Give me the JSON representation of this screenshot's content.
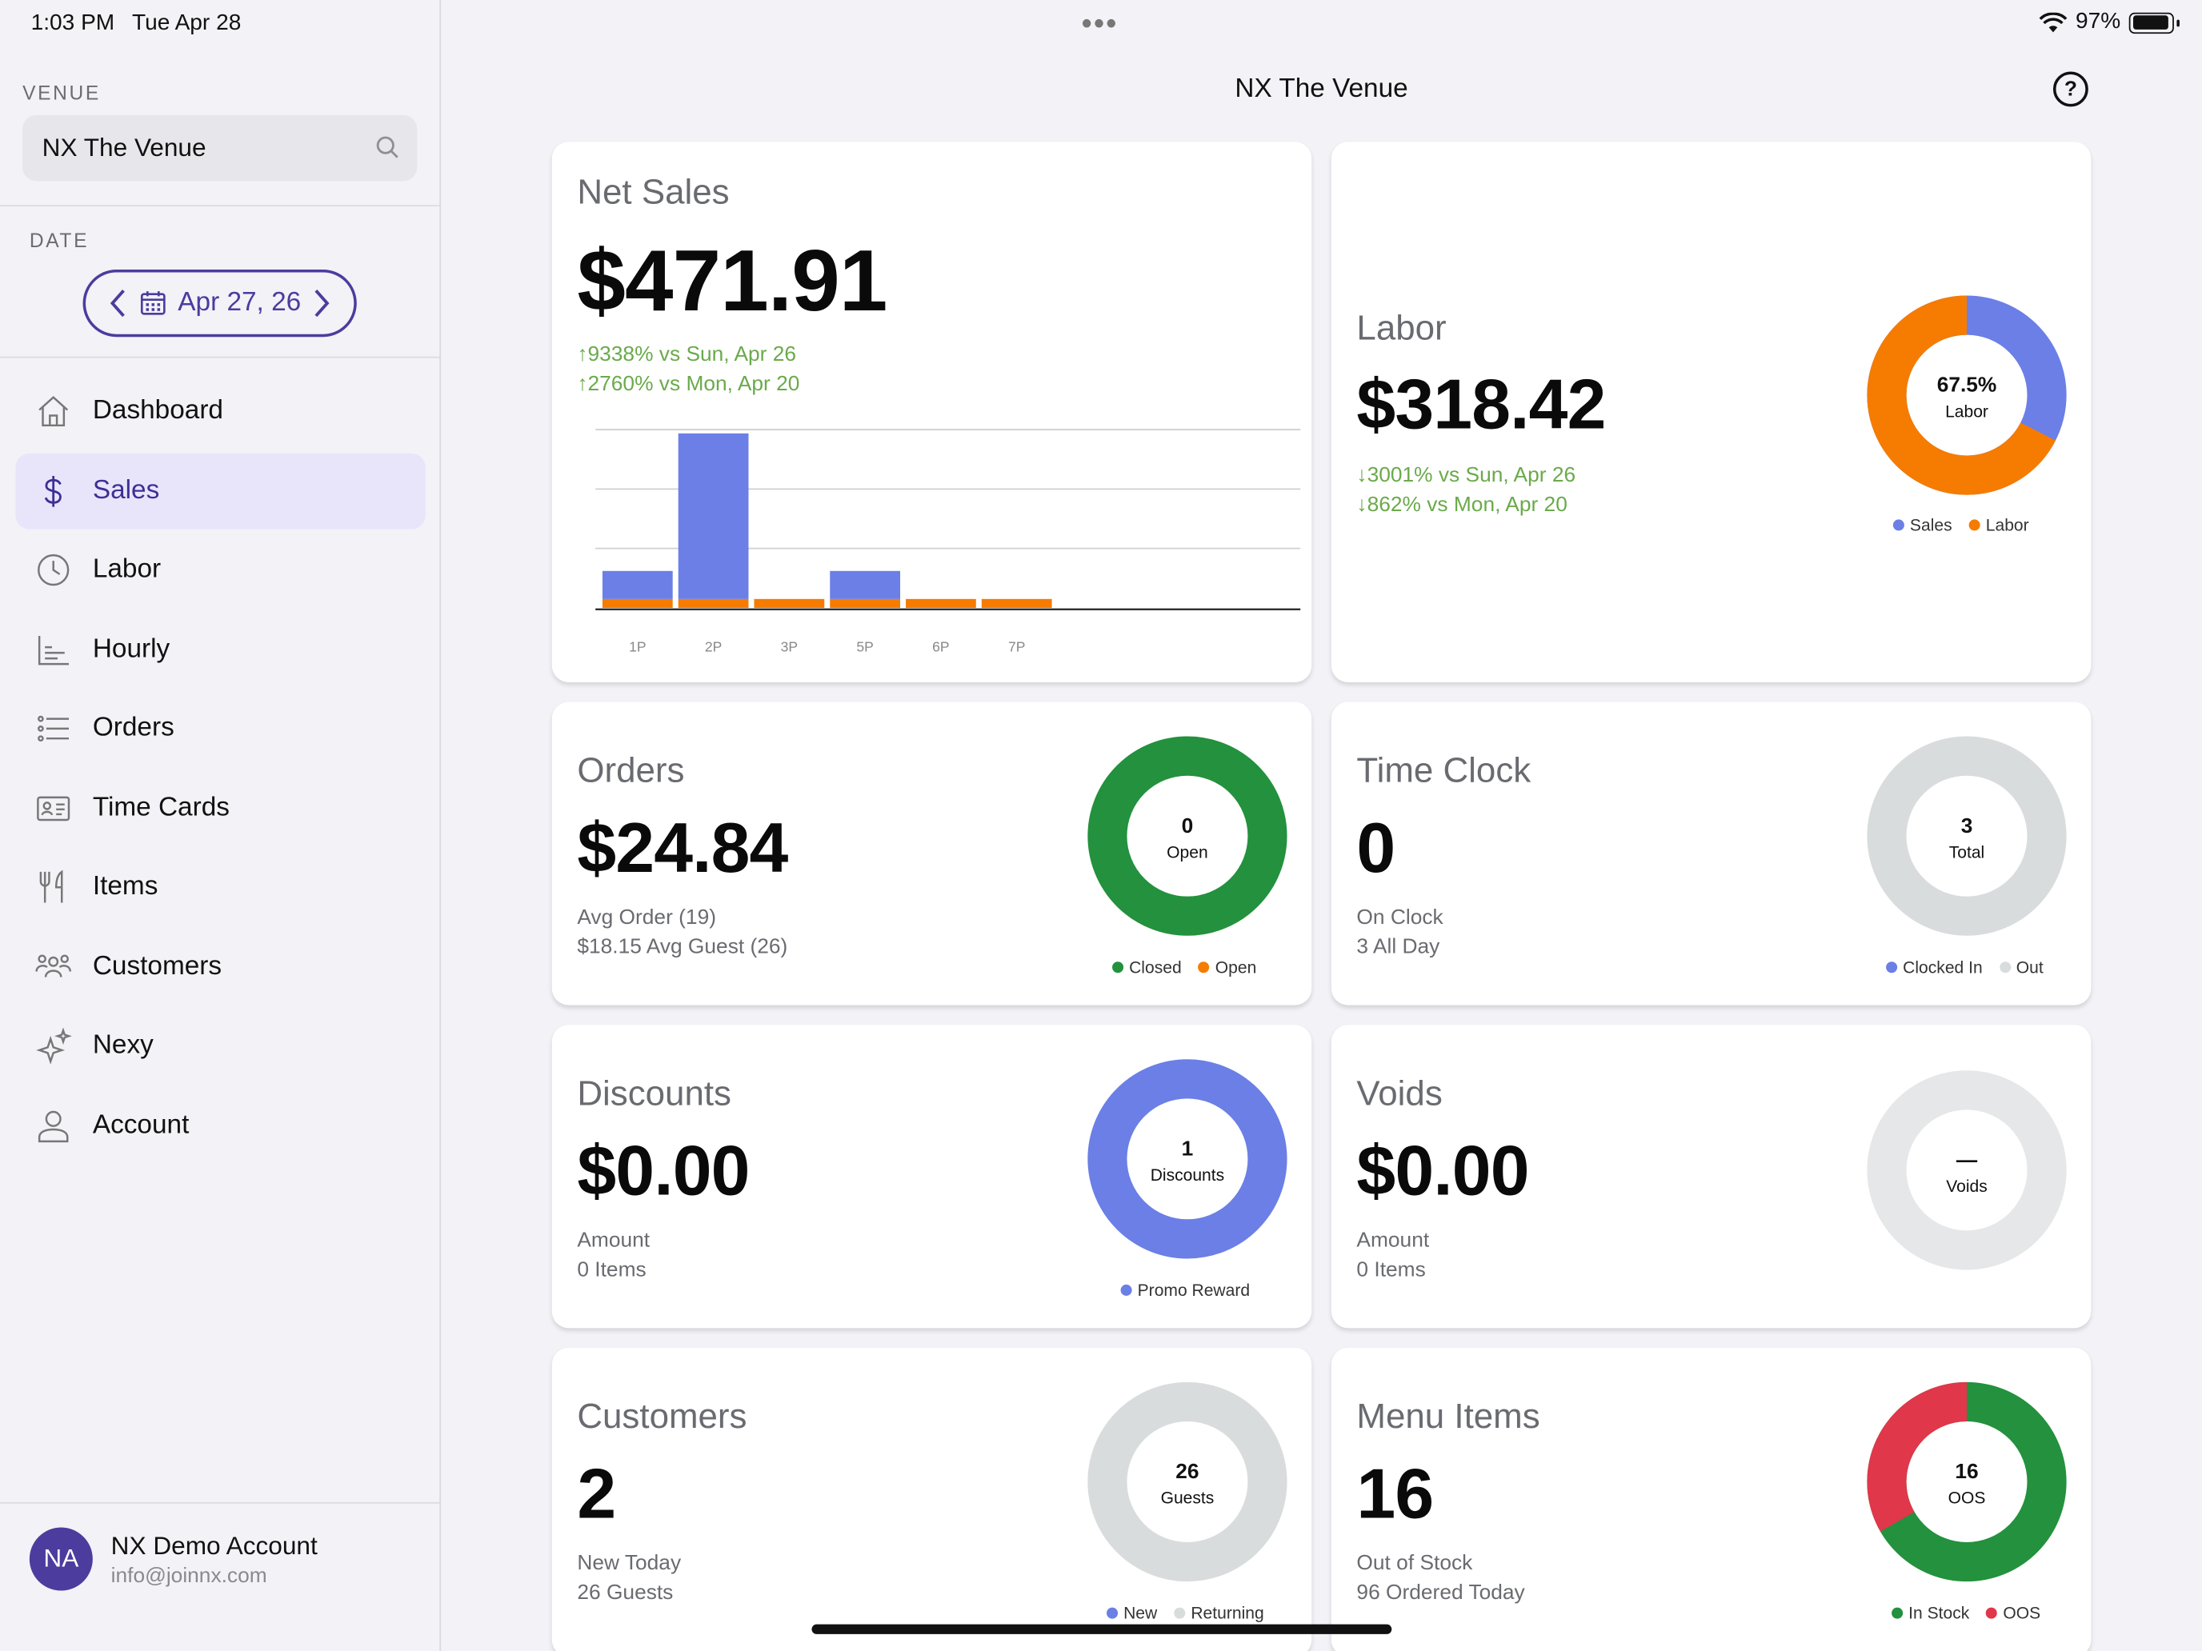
{
  "status": {
    "time": "1:03 PM",
    "date": "Tue Apr 28",
    "battery": "97%"
  },
  "sidebar": {
    "venue_label": "VENUE",
    "venue_value": "NX The Venue",
    "date_label": "DATE",
    "date_value": "Apr 27, 26",
    "items": [
      {
        "label": "Dashboard",
        "icon": "home-icon"
      },
      {
        "label": "Sales",
        "icon": "dollar-icon",
        "active": true
      },
      {
        "label": "Labor",
        "icon": "clock-icon"
      },
      {
        "label": "Hourly",
        "icon": "bar-chart-icon"
      },
      {
        "label": "Orders",
        "icon": "list-icon"
      },
      {
        "label": "Time Cards",
        "icon": "id-card-icon"
      },
      {
        "label": "Items",
        "icon": "utensils-icon"
      },
      {
        "label": "Customers",
        "icon": "users-icon"
      },
      {
        "label": "Nexy",
        "icon": "sparkles-icon"
      },
      {
        "label": "Account",
        "icon": "person-icon"
      }
    ],
    "account": {
      "initials": "NA",
      "name": "NX Demo Account",
      "email": "info@joinnx.com"
    }
  },
  "header": {
    "title": "NX The Venue"
  },
  "cards": {
    "net_sales": {
      "title": "Net Sales",
      "value": "$471.91",
      "cmp1": "↑9338% vs Sun, Apr 26",
      "cmp2": "↑2760% vs Mon, Apr 20"
    },
    "labor": {
      "title": "Labor",
      "value": "$318.42",
      "cmp1": "↓3001% vs Sun, Apr 26",
      "cmp2": "↓862% vs Mon, Apr 20",
      "donut_value": "67.5%",
      "donut_label": "Labor",
      "legend": [
        "Sales",
        "Labor"
      ],
      "fraction": 0.675
    },
    "orders": {
      "title": "Orders",
      "value": "$24.84",
      "line1": "Avg Order (19)",
      "line2": "$18.15  Avg Guest (26)",
      "donut_value": "0",
      "donut_label": "Open",
      "legend": [
        "Closed",
        "Open"
      ]
    },
    "time_clock": {
      "title": "Time Clock",
      "value": "0",
      "line1": "On Clock",
      "line2": "3  All Day",
      "donut_value": "3",
      "donut_label": "Total",
      "legend": [
        "Clocked In",
        "Out"
      ]
    },
    "discounts": {
      "title": "Discounts",
      "value": "$0.00",
      "line1": "Amount",
      "line2": "0  Items",
      "donut_value": "1",
      "donut_label": "Discounts",
      "legend": [
        "Promo Reward"
      ]
    },
    "voids": {
      "title": "Voids",
      "value": "$0.00",
      "line1": "Amount",
      "line2": "0  Items",
      "donut_value": "—",
      "donut_label": "Voids"
    },
    "customers": {
      "title": "Customers",
      "value": "2",
      "line1": "New Today",
      "line2": "26  Guests",
      "donut_value": "26",
      "donut_label": "Guests",
      "legend": [
        "New",
        "Returning"
      ]
    },
    "menu_items": {
      "title": "Menu Items",
      "value": "16",
      "line1": "Out of Stock",
      "line2": "96  Ordered Today",
      "donut_value": "16",
      "donut_label": "OOS",
      "legend": [
        "In Stock",
        "OOS"
      ],
      "oos_fraction": 0.333
    }
  },
  "colors": {
    "accent": "#4b3c9e",
    "sales": "#6b7fe6",
    "labor": "#f57c00",
    "green": "#23913d",
    "red": "#e0374a",
    "grey": "#d9dcdd"
  },
  "chart_data": {
    "type": "bar",
    "categories": [
      "1P",
      "2P",
      "3P",
      "5P",
      "6P",
      "7P"
    ],
    "series": [
      {
        "values": [
          22,
          130,
          4,
          22,
          4,
          4
        ]
      },
      {
        "values": [
          7,
          7,
          7,
          7,
          7,
          7
        ]
      }
    ],
    "ylim": [
      0,
      140
    ],
    "grid": true
  }
}
